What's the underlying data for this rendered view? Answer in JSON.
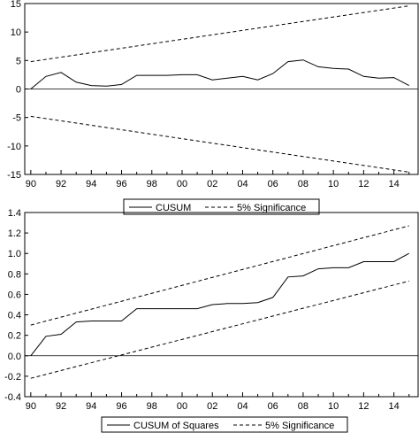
{
  "chart_data": [
    {
      "type": "line",
      "series": [
        {
          "name": "CUSUM",
          "x": [
            1990,
            1991,
            1992,
            1993,
            1994,
            1995,
            1996,
            1997,
            1998,
            1999,
            2000,
            2001,
            2002,
            2003,
            2004,
            2005,
            2006,
            2007,
            2008,
            2009,
            2010,
            2011,
            2012,
            2013,
            2014,
            2015
          ],
          "values": [
            0.0,
            2.2,
            2.9,
            1.2,
            0.6,
            0.5,
            0.8,
            2.4,
            2.4,
            2.4,
            2.5,
            2.5,
            1.6,
            1.9,
            2.2,
            1.6,
            2.7,
            4.8,
            5.1,
            3.9,
            3.6,
            3.5,
            2.2,
            1.9,
            2.0,
            0.6
          ],
          "style": "solid"
        },
        {
          "name": "5% Significance",
          "x": [
            1990,
            2015
          ],
          "values": [
            4.8,
            14.6
          ],
          "style": "dashed"
        },
        {
          "name": "",
          "x": [
            1990,
            2015
          ],
          "values": [
            -4.8,
            -14.6
          ],
          "style": "dashed"
        }
      ],
      "xlim": [
        1989.6,
        2015.6
      ],
      "ylim": [
        -15,
        15
      ],
      "xticks": [
        1990,
        1992,
        1994,
        1996,
        1998,
        2000,
        2002,
        2004,
        2006,
        2008,
        2010,
        2012,
        2014
      ],
      "xtick_labels": [
        "90",
        "92",
        "94",
        "96",
        "98",
        "00",
        "02",
        "04",
        "06",
        "08",
        "10",
        "12",
        "14"
      ],
      "yticks": [
        -15,
        -10,
        -5,
        0,
        5,
        10,
        15
      ],
      "ytick_labels": [
        "-15",
        "-10",
        "-5",
        "0",
        "5",
        "10",
        "15"
      ],
      "zero_line": true,
      "legend": [
        {
          "label": "CUSUM",
          "style": "solid"
        },
        {
          "label": "5% Significance",
          "style": "dashed"
        }
      ],
      "legend_position": "below"
    },
    {
      "type": "line",
      "series": [
        {
          "name": "CUSUM of Squares",
          "x": [
            1990,
            1991,
            1992,
            1993,
            1994,
            1995,
            1996,
            1997,
            1998,
            1999,
            2000,
            2001,
            2002,
            2003,
            2004,
            2005,
            2006,
            2007,
            2008,
            2009,
            2010,
            2011,
            2012,
            2013,
            2014,
            2015
          ],
          "values": [
            0.0,
            0.19,
            0.21,
            0.33,
            0.34,
            0.34,
            0.34,
            0.46,
            0.46,
            0.46,
            0.46,
            0.46,
            0.5,
            0.51,
            0.51,
            0.52,
            0.57,
            0.77,
            0.78,
            0.85,
            0.86,
            0.86,
            0.92,
            0.92,
            0.92,
            1.0
          ],
          "style": "solid"
        },
        {
          "name": "5% Significance",
          "x": [
            1990,
            2015
          ],
          "values": [
            0.3,
            1.27
          ],
          "style": "dashed"
        },
        {
          "name": "",
          "x": [
            1990,
            2015
          ],
          "values": [
            -0.22,
            0.73
          ],
          "style": "dashed"
        }
      ],
      "xlim": [
        1989.6,
        2015.6
      ],
      "ylim": [
        -0.4,
        1.4
      ],
      "xticks": [
        1990,
        1992,
        1994,
        1996,
        1998,
        2000,
        2002,
        2004,
        2006,
        2008,
        2010,
        2012,
        2014
      ],
      "xtick_labels": [
        "90",
        "92",
        "94",
        "96",
        "98",
        "00",
        "02",
        "04",
        "06",
        "08",
        "10",
        "12",
        "14"
      ],
      "yticks": [
        -0.4,
        -0.2,
        0.0,
        0.2,
        0.4,
        0.6,
        0.8,
        1.0,
        1.2,
        1.4
      ],
      "ytick_labels": [
        "-0.4",
        "-0.2",
        "0.0",
        "0.2",
        "0.4",
        "0.6",
        "0.8",
        "1.0",
        "1.2",
        "1.4"
      ],
      "zero_line": true,
      "legend": [
        {
          "label": "CUSUM of Squares",
          "style": "solid"
        },
        {
          "label": "5% Significance",
          "style": "dashed"
        }
      ],
      "legend_position": "below"
    }
  ]
}
